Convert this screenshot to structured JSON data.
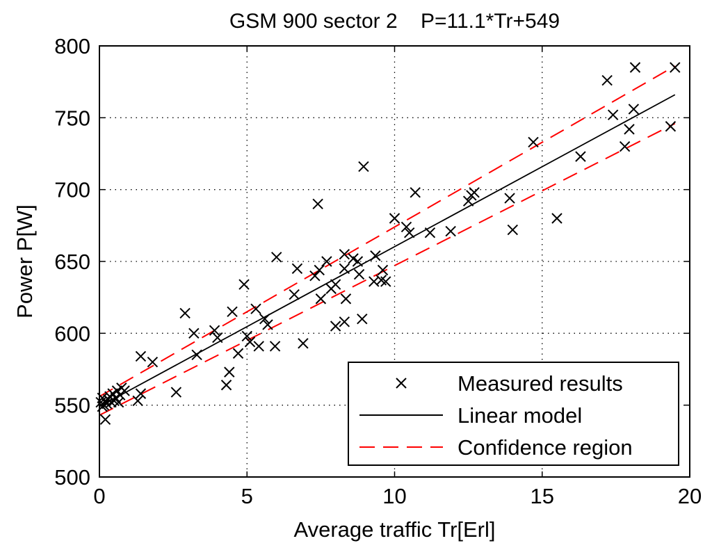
{
  "chart_data": {
    "type": "scatter",
    "title": "GSM 900 sector 2    P=11.1*Tr+549",
    "xlabel": "Average traffic Tr[Erl]",
    "ylabel": "Power P[W]",
    "xlim": [
      0,
      20
    ],
    "ylim": [
      500,
      800
    ],
    "xticks": [
      0,
      5,
      10,
      15,
      20
    ],
    "yticks": [
      500,
      550,
      600,
      650,
      700,
      750,
      800
    ],
    "grid": true,
    "legend_position": "bottom-right",
    "series": [
      {
        "name": "Measured results",
        "kind": "markers",
        "marker": "x",
        "color": "#000000",
        "points": [
          [
            0.05,
            552
          ],
          [
            0.1,
            555
          ],
          [
            0.15,
            550
          ],
          [
            0.2,
            553
          ],
          [
            0.25,
            551
          ],
          [
            0.3,
            554
          ],
          [
            0.35,
            556
          ],
          [
            0.4,
            552
          ],
          [
            0.45,
            558
          ],
          [
            0.5,
            553
          ],
          [
            0.55,
            555
          ],
          [
            0.6,
            560
          ],
          [
            0.7,
            557
          ],
          [
            0.75,
            562
          ],
          [
            0.85,
            560
          ],
          [
            0.2,
            540
          ],
          [
            0.65,
            552
          ],
          [
            0.1,
            549
          ],
          [
            1.3,
            553
          ],
          [
            1.4,
            558
          ],
          [
            1.4,
            584
          ],
          [
            1.8,
            580
          ],
          [
            2.6,
            559
          ],
          [
            2.9,
            614
          ],
          [
            3.2,
            600
          ],
          [
            3.3,
            585
          ],
          [
            3.9,
            602
          ],
          [
            4.0,
            597
          ],
          [
            4.3,
            564
          ],
          [
            4.4,
            573
          ],
          [
            4.5,
            615
          ],
          [
            4.7,
            586
          ],
          [
            4.9,
            634
          ],
          [
            5.0,
            598
          ],
          [
            5.1,
            594
          ],
          [
            5.3,
            617
          ],
          [
            5.4,
            591
          ],
          [
            5.6,
            610
          ],
          [
            5.7,
            606
          ],
          [
            5.95,
            591
          ],
          [
            6.0,
            653
          ],
          [
            6.6,
            627
          ],
          [
            6.7,
            645
          ],
          [
            6.9,
            593
          ],
          [
            7.3,
            640
          ],
          [
            7.4,
            690
          ],
          [
            7.45,
            644
          ],
          [
            7.5,
            624
          ],
          [
            7.7,
            650
          ],
          [
            7.85,
            631
          ],
          [
            8.0,
            634
          ],
          [
            8.0,
            605
          ],
          [
            8.3,
            655
          ],
          [
            8.3,
            608
          ],
          [
            8.3,
            645
          ],
          [
            8.35,
            624
          ],
          [
            8.6,
            652
          ],
          [
            8.75,
            650
          ],
          [
            8.8,
            641
          ],
          [
            8.95,
            716
          ],
          [
            8.9,
            610
          ],
          [
            9.3,
            636
          ],
          [
            9.35,
            654
          ],
          [
            9.55,
            637
          ],
          [
            9.6,
            644
          ],
          [
            9.7,
            636
          ],
          [
            10.0,
            680
          ],
          [
            10.4,
            674
          ],
          [
            10.5,
            670
          ],
          [
            10.7,
            698
          ],
          [
            11.2,
            670
          ],
          [
            11.9,
            671
          ],
          [
            12.5,
            692
          ],
          [
            12.6,
            696
          ],
          [
            12.7,
            698
          ],
          [
            13.9,
            694
          ],
          [
            14.0,
            672
          ],
          [
            14.7,
            733
          ],
          [
            15.5,
            680
          ],
          [
            16.3,
            723
          ],
          [
            17.2,
            776
          ],
          [
            17.4,
            752
          ],
          [
            17.8,
            730
          ],
          [
            17.95,
            742
          ],
          [
            18.1,
            756
          ],
          [
            18.15,
            785
          ],
          [
            19.35,
            744
          ],
          [
            19.5,
            785
          ]
        ]
      },
      {
        "name": "Linear model",
        "kind": "line",
        "color": "#000000",
        "dash": "solid",
        "points": [
          [
            0,
            549
          ],
          [
            19.5,
            766
          ]
        ]
      },
      {
        "name": "Confidence region",
        "kind": "line",
        "color": "#ff0000",
        "dash": "dashed",
        "points": [
          [
            0,
            556
          ],
          [
            19.5,
            786
          ]
        ]
      },
      {
        "name": "",
        "kind": "line",
        "color": "#ff0000",
        "dash": "dashed",
        "legend": false,
        "points": [
          [
            0,
            543
          ],
          [
            19.5,
            746
          ]
        ]
      }
    ]
  }
}
